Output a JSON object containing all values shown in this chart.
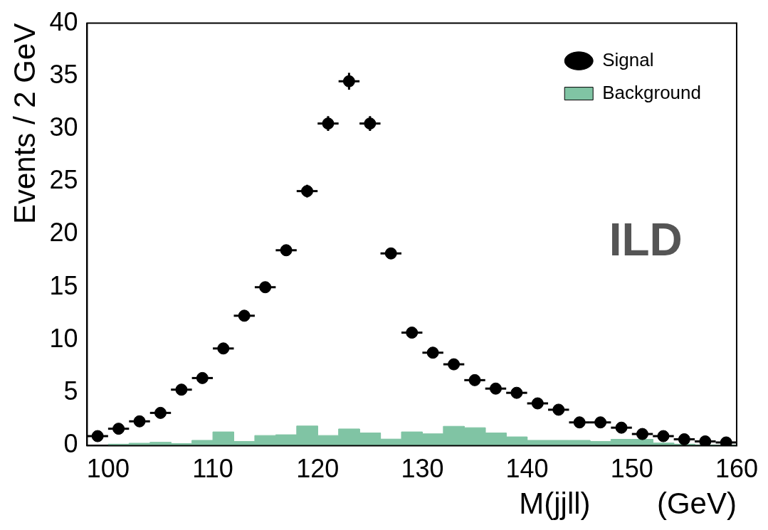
{
  "chart_data": {
    "type": "scatter",
    "xlabel": "M(jjll)        (GeV)",
    "ylabel": "Events / 2 GeV",
    "annotations": [
      "ILD"
    ],
    "xlim": [
      98,
      160
    ],
    "xticks": [
      100,
      110,
      120,
      130,
      140,
      150,
      160
    ],
    "ylim": [
      0,
      40
    ],
    "yticks": [
      0,
      5,
      10,
      15,
      20,
      25,
      30,
      35,
      40
    ],
    "legend": "top right",
    "grid": false,
    "marker": "circle",
    "series": [
      {
        "name": "Signal",
        "type": "scatter",
        "color": "#000000",
        "x": [
          99,
          101,
          103,
          105,
          107,
          109,
          111,
          113,
          115,
          117,
          119,
          121,
          123,
          125,
          127,
          129,
          131,
          133,
          135,
          137,
          139,
          141,
          143,
          145,
          147,
          149,
          151,
          153,
          155,
          157,
          159
        ],
        "values": [
          0.9,
          1.6,
          2.3,
          3.1,
          5.3,
          6.4,
          9.2,
          12.3,
          15.0,
          18.5,
          24.1,
          30.5,
          34.5,
          30.5,
          18.2,
          10.7,
          8.8,
          7.7,
          6.2,
          5.4,
          5.0,
          4.0,
          3.4,
          2.2,
          2.2,
          1.7,
          1.1,
          0.9,
          0.6,
          0.4,
          0.3
        ],
        "errors": [
          null,
          null,
          null,
          null,
          null,
          null,
          null,
          null,
          null,
          0.5,
          0.6,
          0.7,
          0.8,
          0.7,
          0.5,
          null,
          null,
          null,
          null,
          null,
          null,
          null,
          null,
          null,
          null,
          null,
          null,
          null,
          null,
          null,
          null
        ],
        "xerrors": [
          1,
          1,
          1,
          1,
          1,
          1,
          1,
          1,
          1,
          1,
          1,
          1,
          1,
          1,
          1,
          1,
          1,
          1,
          1,
          1,
          1,
          1,
          1,
          1,
          1,
          1,
          1,
          1,
          1,
          1,
          1
        ]
      },
      {
        "name": "Background",
        "type": "histogram",
        "color": "#80c4a4",
        "bins": [
          100,
          102,
          104,
          106,
          108,
          110,
          112,
          114,
          116,
          118,
          120,
          122,
          124,
          126,
          128,
          130,
          132,
          134,
          136,
          138,
          140,
          142,
          144,
          146,
          148,
          150,
          152,
          154,
          156,
          158,
          160
        ],
        "values": [
          0.14,
          0.23,
          0.32,
          0.2,
          0.5,
          1.3,
          0.4,
          0.96,
          1.03,
          1.86,
          0.96,
          1.58,
          1.2,
          0.62,
          1.3,
          1.12,
          1.83,
          1.7,
          1.2,
          0.83,
          0.5,
          0.5,
          0.5,
          0.4,
          0.6,
          0.6,
          0.25,
          0.14,
          0.07,
          0.05
        ]
      }
    ]
  }
}
